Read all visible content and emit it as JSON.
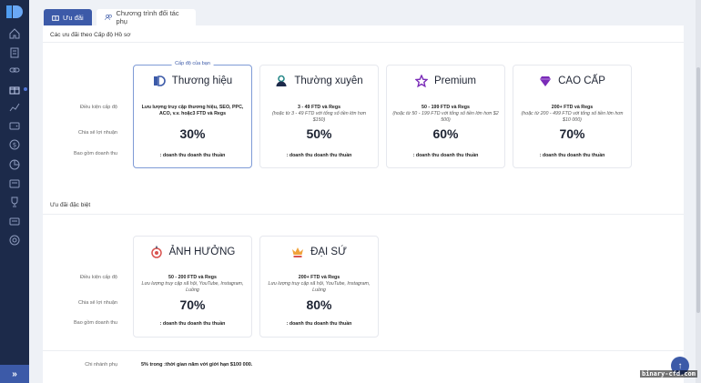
{
  "tabs": [
    {
      "label": "Ưu đãi"
    },
    {
      "label": "Chương trình đối tác phụ"
    }
  ],
  "sections": {
    "tier_title": "Các ưu đãi theo Cấp độ Hồ sơ",
    "special_title": "Ưu đãi đặc biệt"
  },
  "row_labels": {
    "condition": "Điều kiện cấp độ",
    "share": "Chia sẻ lợi nhuận",
    "include": "Bao gồm doanh thu",
    "branch": "Chi nhánh phụ"
  },
  "selected_badge": "Cấp độ của bạn",
  "tiers": [
    {
      "name": "Thương hiệu",
      "icon": "brand-logo-icon",
      "condition": "Lưu lượng truy cập thương hiệu, SEO, PPC, ACO, v.v. hoặc3 FTD và Regs",
      "condition_sub": "",
      "share": "30%",
      "include": ": doanh thu doanh thu thuần"
    },
    {
      "name": "Thường xuyên",
      "icon": "user-icon",
      "condition": "3 - 49 FTD và Regs",
      "condition_sub": "(hoặc từ 3 - 49 FTD với tổng số tiền lớn hơn $150)",
      "share": "50%",
      "include": ": doanh thu doanh thu thuần"
    },
    {
      "name": "Premium",
      "icon": "star-icon",
      "condition": "50 - 199 FTD và Regs",
      "condition_sub": "(hoặc từ 50 - 199 FTD với tổng số tiền lớn hơn $2 500)",
      "share": "60%",
      "include": ": doanh thu doanh thu thuần"
    },
    {
      "name": "CAO CẤP",
      "icon": "diamond-icon",
      "condition": "200+ FTD và Regs",
      "condition_sub": "(hoặc từ 200 - 499 FTD với tổng số tiền lớn hơn $10 000)",
      "share": "70%",
      "include": ": doanh thu doanh thu thuần"
    }
  ],
  "special": [
    {
      "name": "ẢNH HƯỞNG",
      "icon": "influencer-icon",
      "condition": "50 - 200 FTD và Regs",
      "condition_sub": "Lưu lượng truy cập xã hội, YouTube, Instagram, Luồng",
      "share": "70%",
      "include": ": doanh thu doanh thu thuần"
    },
    {
      "name": "ĐẠI SỨ",
      "icon": "crown-icon",
      "condition": "200+ FTD và Regs",
      "condition_sub": "Lưu lượng truy cập xã hội, YouTube, Instagram, Luồng",
      "share": "80%",
      "include": ": doanh thu doanh thu thuần"
    }
  ],
  "branch_text": "5% trong :thời gian năm với giới hạn $100 000.",
  "sidebar_expand": "»",
  "fab_label": "↑",
  "watermark": "binary-cfd.com",
  "colors": {
    "accent": "#3c5aa8",
    "sidebar": "#1c2a4a",
    "icon_red": "#d9534f",
    "icon_purple": "#7a2bb8",
    "icon_orange": "#f0a23a"
  }
}
